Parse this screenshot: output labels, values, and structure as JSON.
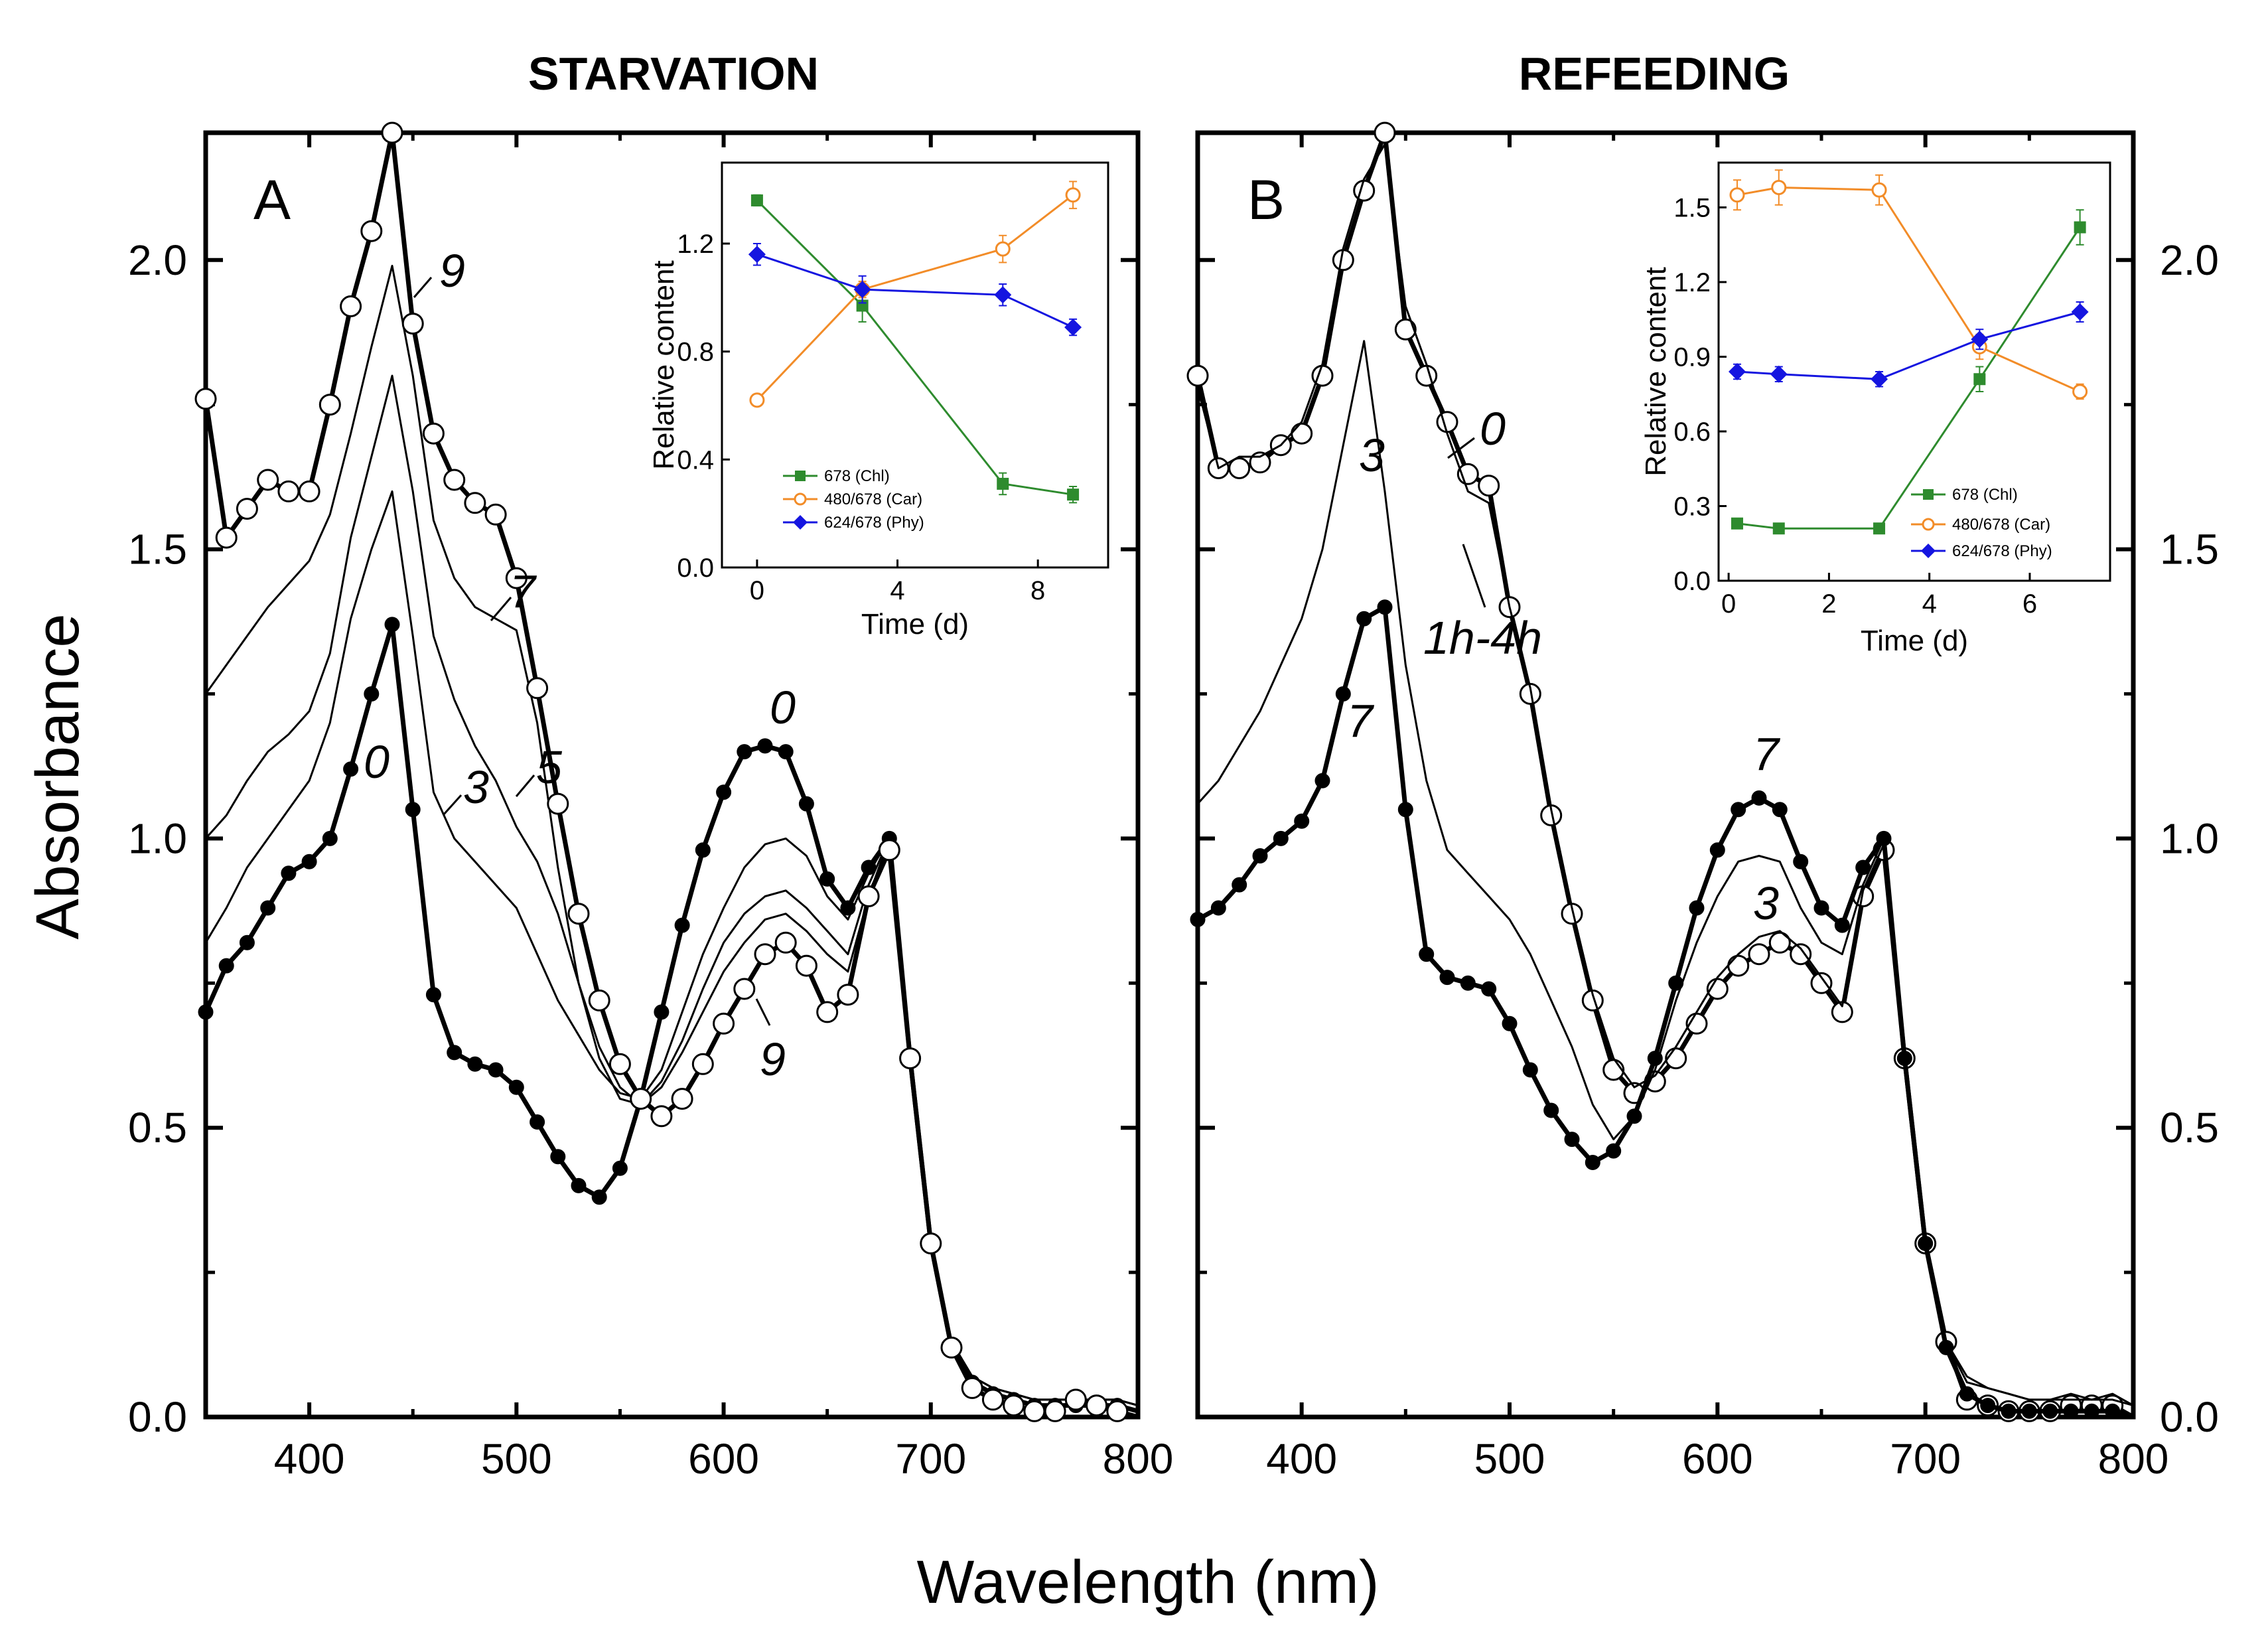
{
  "chart_data": [
    {
      "type": "line",
      "panel": "A",
      "title": "STARVATION",
      "xlabel": "Wavelength (nm)",
      "ylabel": "Absorbance",
      "xlim": [
        350,
        800
      ],
      "ylim": [
        0,
        2.22
      ],
      "xticks": [
        "400",
        "500",
        "600",
        "700",
        "800"
      ],
      "yticks": [
        "0.0",
        "0.5",
        "1.0",
        "1.5",
        "2.0"
      ],
      "x": [
        350,
        360,
        370,
        380,
        390,
        400,
        410,
        420,
        430,
        440,
        450,
        460,
        470,
        480,
        490,
        500,
        510,
        520,
        530,
        540,
        550,
        560,
        570,
        580,
        590,
        600,
        610,
        620,
        630,
        640,
        650,
        660,
        670,
        680,
        690,
        700,
        710,
        720,
        730,
        740,
        750,
        760,
        770,
        780,
        790,
        800
      ],
      "series": [
        {
          "name": "0",
          "marker": "filled-circle",
          "values": [
            0.7,
            0.78,
            0.82,
            0.88,
            0.94,
            0.96,
            1.0,
            1.12,
            1.25,
            1.37,
            1.05,
            0.73,
            0.63,
            0.61,
            0.6,
            0.57,
            0.51,
            0.45,
            0.4,
            0.38,
            0.43,
            0.55,
            0.7,
            0.85,
            0.98,
            1.08,
            1.15,
            1.16,
            1.15,
            1.06,
            0.93,
            0.88,
            0.95,
            1.0,
            0.62,
            0.3,
            0.12,
            0.06,
            0.04,
            0.03,
            0.02,
            0.02,
            0.02,
            0.02,
            0.02,
            0.01
          ]
        },
        {
          "name": "3",
          "marker": "none",
          "values": [
            0.82,
            0.88,
            0.95,
            1.0,
            1.05,
            1.1,
            1.2,
            1.38,
            1.5,
            1.6,
            1.35,
            1.08,
            1.0,
            0.96,
            0.92,
            0.88,
            0.8,
            0.72,
            0.66,
            0.6,
            0.56,
            0.55,
            0.6,
            0.7,
            0.8,
            0.88,
            0.95,
            0.99,
            1.0,
            0.97,
            0.9,
            0.86,
            0.94,
            1.0,
            0.62,
            0.3,
            0.13,
            0.07,
            0.05,
            0.04,
            0.03,
            0.03,
            0.03,
            0.03,
            0.03,
            0.02
          ]
        },
        {
          "name": "5",
          "marker": "none",
          "values": [
            1.0,
            1.04,
            1.1,
            1.15,
            1.18,
            1.22,
            1.32,
            1.52,
            1.66,
            1.8,
            1.6,
            1.35,
            1.24,
            1.16,
            1.1,
            1.02,
            0.96,
            0.87,
            0.75,
            0.64,
            0.57,
            0.54,
            0.58,
            0.65,
            0.74,
            0.82,
            0.87,
            0.9,
            0.91,
            0.88,
            0.84,
            0.8,
            0.92,
            1.0,
            0.62,
            0.3,
            0.13,
            0.07,
            0.05,
            0.04,
            0.03,
            0.03,
            0.03,
            0.03,
            0.03,
            0.02
          ]
        },
        {
          "name": "7",
          "marker": "none",
          "values": [
            1.25,
            1.3,
            1.35,
            1.4,
            1.44,
            1.48,
            1.56,
            1.7,
            1.85,
            1.99,
            1.8,
            1.55,
            1.45,
            1.4,
            1.38,
            1.36,
            1.2,
            0.95,
            0.75,
            0.62,
            0.55,
            0.54,
            0.57,
            0.63,
            0.7,
            0.77,
            0.82,
            0.86,
            0.87,
            0.84,
            0.8,
            0.77,
            0.9,
            1.0,
            0.62,
            0.3,
            0.13,
            0.07,
            0.05,
            0.04,
            0.03,
            0.03,
            0.03,
            0.03,
            0.03,
            0.02
          ]
        },
        {
          "name": "9",
          "marker": "open-circle",
          "values": [
            1.76,
            1.52,
            1.57,
            1.62,
            1.6,
            1.6,
            1.75,
            1.92,
            2.05,
            2.22,
            1.89,
            1.7,
            1.62,
            1.58,
            1.56,
            1.45,
            1.26,
            1.06,
            0.87,
            0.72,
            0.61,
            0.55,
            0.52,
            0.55,
            0.61,
            0.68,
            0.74,
            0.8,
            0.82,
            0.78,
            0.7,
            0.73,
            0.9,
            0.98,
            0.62,
            0.3,
            0.12,
            0.05,
            0.03,
            0.02,
            0.01,
            0.01,
            0.03,
            0.02,
            0.01,
            0.0
          ]
        }
      ],
      "curve_labels": [
        "9",
        "7",
        "5",
        "3",
        "0",
        "0",
        "9"
      ],
      "inset": {
        "type": "line",
        "xlabel": "Time (d)",
        "ylabel": "Relative content",
        "xlim": [
          -1,
          10
        ],
        "ylim": [
          0,
          1.5
        ],
        "xticks": [
          "0",
          "4",
          "8"
        ],
        "yticks": [
          "0.0",
          "0.4",
          "0.8",
          "1.2"
        ],
        "x": [
          0,
          3,
          7,
          9
        ],
        "series": [
          {
            "name": "678 (Chl)",
            "marker": "filled-square",
            "values": [
              1.36,
              0.97,
              0.31,
              0.27
            ],
            "errors": [
              0.02,
              0.06,
              0.04,
              0.03
            ]
          },
          {
            "name": "480/678 (Car)",
            "marker": "open-circle",
            "values": [
              0.62,
              1.03,
              1.18,
              1.38
            ],
            "errors": [
              0.02,
              0.03,
              0.05,
              0.05
            ]
          },
          {
            "name": "624/678 (Phy)",
            "marker": "filled-diamond",
            "values": [
              1.16,
              1.03,
              1.01,
              0.89
            ],
            "errors": [
              0.04,
              0.05,
              0.04,
              0.03
            ]
          }
        ]
      }
    },
    {
      "type": "line",
      "panel": "B",
      "title": "REFEEDING",
      "xlabel": "Wavelength (nm)",
      "ylabel": "Absorbance",
      "xlim": [
        350,
        800
      ],
      "ylim": [
        0,
        2.22
      ],
      "xticks": [
        "400",
        "500",
        "600",
        "700",
        "800"
      ],
      "yticks": [
        "0.0",
        "0.5",
        "1.0",
        "1.5",
        "2.0"
      ],
      "x": [
        350,
        360,
        370,
        380,
        390,
        400,
        410,
        420,
        430,
        440,
        450,
        460,
        470,
        480,
        490,
        500,
        510,
        520,
        530,
        540,
        550,
        560,
        570,
        580,
        590,
        600,
        610,
        620,
        630,
        640,
        650,
        660,
        670,
        680,
        690,
        700,
        710,
        720,
        730,
        740,
        750,
        760,
        770,
        780,
        790,
        800
      ],
      "series": [
        {
          "name": "0",
          "marker": "open-circle",
          "values": [
            1.8,
            1.64,
            1.64,
            1.65,
            1.68,
            1.7,
            1.8,
            2.0,
            2.12,
            2.22,
            1.88,
            1.8,
            1.72,
            1.63,
            1.61,
            1.4,
            1.25,
            1.04,
            0.87,
            0.72,
            0.6,
            0.56,
            0.58,
            0.62,
            0.68,
            0.74,
            0.78,
            0.8,
            0.82,
            0.8,
            0.75,
            0.7,
            0.9,
            0.98,
            0.62,
            0.3,
            0.13,
            0.03,
            0.02,
            0.01,
            0.01,
            0.01,
            0.02,
            0.02,
            0.02,
            0.0
          ]
        },
        {
          "name": "1h-4h",
          "marker": "none",
          "values": [
            1.78,
            1.64,
            1.66,
            1.66,
            1.68,
            1.72,
            1.82,
            2.02,
            2.14,
            2.2,
            1.92,
            1.82,
            1.7,
            1.6,
            1.58,
            1.4,
            1.26,
            1.05,
            0.88,
            0.73,
            0.62,
            0.57,
            0.59,
            0.64,
            0.7,
            0.76,
            0.8,
            0.83,
            0.84,
            0.81,
            0.76,
            0.71,
            0.91,
            0.99,
            0.62,
            0.3,
            0.13,
            0.06,
            0.05,
            0.04,
            0.03,
            0.03,
            0.04,
            0.03,
            0.04,
            0.02
          ]
        },
        {
          "name": "3",
          "marker": "none",
          "values": [
            1.06,
            1.1,
            1.16,
            1.22,
            1.3,
            1.38,
            1.5,
            1.68,
            1.86,
            1.6,
            1.3,
            1.1,
            0.98,
            0.94,
            0.9,
            0.86,
            0.8,
            0.72,
            0.64,
            0.54,
            0.48,
            0.52,
            0.6,
            0.72,
            0.82,
            0.9,
            0.96,
            0.97,
            0.96,
            0.88,
            0.82,
            0.8,
            0.92,
            1.0,
            0.62,
            0.3,
            0.13,
            0.07,
            0.05,
            0.04,
            0.03,
            0.03,
            0.03,
            0.03,
            0.03,
            0.02
          ]
        },
        {
          "name": "7",
          "marker": "filled-circle",
          "values": [
            0.86,
            0.88,
            0.92,
            0.97,
            1.0,
            1.03,
            1.1,
            1.25,
            1.38,
            1.4,
            1.05,
            0.8,
            0.76,
            0.75,
            0.74,
            0.68,
            0.6,
            0.53,
            0.48,
            0.44,
            0.46,
            0.52,
            0.62,
            0.75,
            0.88,
            0.98,
            1.05,
            1.07,
            1.05,
            0.96,
            0.88,
            0.85,
            0.95,
            1.0,
            0.62,
            0.3,
            0.12,
            0.04,
            0.02,
            0.01,
            0.01,
            0.01,
            0.01,
            0.01,
            0.01,
            0.0
          ]
        }
      ],
      "curve_labels": [
        "0",
        "3",
        "1h-4h",
        "7",
        "7",
        "3"
      ],
      "inset": {
        "type": "line",
        "xlabel": "Time (d)",
        "ylabel": "Relative content",
        "xlim": [
          -0.2,
          7.6
        ],
        "ylim": [
          0,
          1.68
        ],
        "xticks": [
          "0",
          "2",
          "4",
          "6"
        ],
        "yticks": [
          "0.0",
          "0.3",
          "0.6",
          "0.9",
          "1.2",
          "1.5"
        ],
        "x": [
          0.17,
          1,
          3,
          5,
          7
        ],
        "series": [
          {
            "name": "678 (Chl)",
            "marker": "filled-square",
            "values": [
              0.23,
              0.21,
              0.21,
              0.81,
              1.42
            ],
            "errors": [
              0.02,
              0.02,
              0.02,
              0.05,
              0.07
            ]
          },
          {
            "name": "480/678 (Car)",
            "marker": "open-circle",
            "values": [
              1.55,
              1.58,
              1.57,
              0.94,
              0.76
            ],
            "errors": [
              0.06,
              0.07,
              0.06,
              0.05,
              0.03
            ]
          },
          {
            "name": "624/678 (Phy)",
            "marker": "filled-diamond",
            "values": [
              0.84,
              0.83,
              0.81,
              0.97,
              1.08
            ],
            "errors": [
              0.03,
              0.03,
              0.03,
              0.04,
              0.04
            ]
          }
        ]
      }
    }
  ],
  "colors": {
    "chl": "#2e8b2e",
    "car": "#f28c28",
    "phy": "#1515e0",
    "axis": "#000000"
  }
}
